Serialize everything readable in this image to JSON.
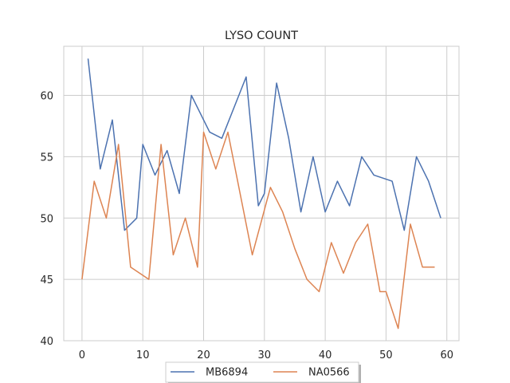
{
  "chart_data": {
    "type": "line",
    "title": "LYSO COUNT",
    "xlabel": "",
    "ylabel": "",
    "xlim": [
      -3,
      62
    ],
    "ylim": [
      40,
      64
    ],
    "xticks": [
      0,
      10,
      20,
      30,
      40,
      50,
      60
    ],
    "yticks": [
      40,
      45,
      50,
      55,
      60
    ],
    "grid": true,
    "legend_position": "bottom-center",
    "series": [
      {
        "name": "MB6894",
        "color": "#4c72b0",
        "points": [
          [
            1,
            63
          ],
          [
            3,
            54
          ],
          [
            5,
            58
          ],
          [
            7,
            49
          ],
          [
            9,
            50
          ],
          [
            10,
            56
          ],
          [
            12,
            53.5
          ],
          [
            14,
            55.5
          ],
          [
            16,
            52
          ],
          [
            18,
            60
          ],
          [
            21,
            57
          ],
          [
            23,
            56.5
          ],
          [
            27,
            61.5
          ],
          [
            29,
            51
          ],
          [
            30,
            52
          ],
          [
            32,
            61
          ],
          [
            34,
            56.5
          ],
          [
            36,
            50.5
          ],
          [
            38,
            55
          ],
          [
            40,
            50.5
          ],
          [
            42,
            53
          ],
          [
            44,
            51
          ],
          [
            46,
            55
          ],
          [
            48,
            53.5
          ],
          [
            51,
            53
          ],
          [
            53,
            49
          ],
          [
            55,
            55
          ],
          [
            57,
            53
          ],
          [
            59,
            50
          ]
        ]
      },
      {
        "name": "NA0566",
        "color": "#dd8452",
        "points": [
          [
            0,
            45
          ],
          [
            2,
            53
          ],
          [
            4,
            50
          ],
          [
            6,
            56
          ],
          [
            8,
            46
          ],
          [
            11,
            45
          ],
          [
            13,
            56
          ],
          [
            15,
            47
          ],
          [
            17,
            50
          ],
          [
            19,
            46
          ],
          [
            20,
            57
          ],
          [
            22,
            54
          ],
          [
            24,
            57
          ],
          [
            28,
            47
          ],
          [
            31,
            52.5
          ],
          [
            33,
            50.5
          ],
          [
            35,
            47.5
          ],
          [
            37,
            45
          ],
          [
            39,
            44
          ],
          [
            41,
            48
          ],
          [
            43,
            45.5
          ],
          [
            45,
            48
          ],
          [
            47,
            49.5
          ],
          [
            49,
            44
          ],
          [
            50,
            44
          ],
          [
            52,
            41
          ],
          [
            54,
            49.5
          ],
          [
            56,
            46
          ],
          [
            58,
            46
          ]
        ]
      }
    ]
  }
}
